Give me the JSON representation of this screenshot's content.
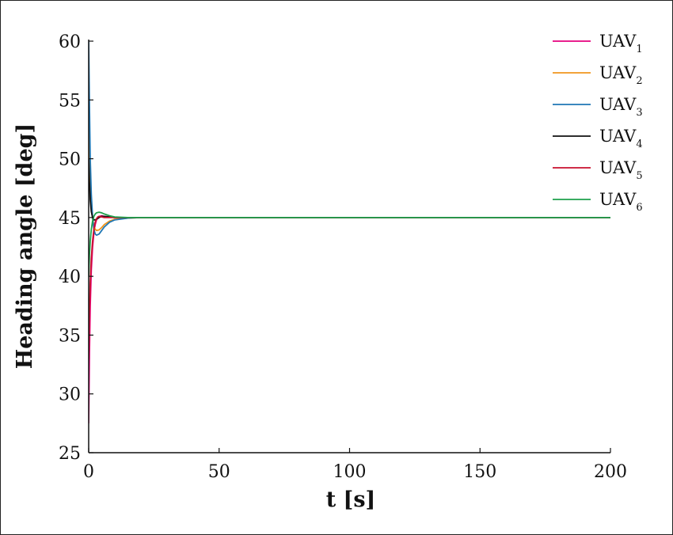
{
  "chart_data": {
    "type": "line",
    "title": "",
    "xlabel": "t [s]",
    "ylabel": "Heading angle [deg]",
    "xlim": [
      0,
      200
    ],
    "ylim": [
      25,
      60
    ],
    "xticks": [
      0,
      50,
      100,
      150,
      200
    ],
    "yticks": [
      25,
      30,
      35,
      40,
      45,
      50,
      55,
      60
    ],
    "grid": false,
    "legend": "top-right",
    "series": [
      {
        "name": "UAV1",
        "label_base": "UAV",
        "label_sub": "1",
        "color": "#e6007e",
        "x": [
          0,
          0.3,
          0.6,
          1,
          1.5,
          2,
          2.5,
          3,
          3.5,
          4,
          5,
          6,
          8,
          10,
          15,
          20,
          30,
          200
        ],
        "y": [
          27.5,
          33.5,
          37.5,
          40.5,
          42.5,
          43.7,
          44.4,
          44.8,
          45.0,
          45.1,
          45.15,
          45.1,
          45.05,
          45.0,
          45.0,
          45.0,
          45.0,
          45.0
        ]
      },
      {
        "name": "UAV2",
        "label_base": "UAV",
        "label_sub": "2",
        "color": "#f0961e",
        "x": [
          0,
          0.3,
          0.6,
          1,
          1.5,
          2,
          2.5,
          3,
          4,
          5,
          6,
          8,
          10,
          15,
          20,
          30,
          200
        ],
        "y": [
          55.0,
          51.0,
          48.0,
          46.0,
          44.9,
          44.3,
          44.0,
          43.9,
          43.95,
          44.15,
          44.4,
          44.7,
          44.85,
          44.95,
          45.0,
          45.0,
          45.0
        ]
      },
      {
        "name": "UAV3",
        "label_base": "UAV",
        "label_sub": "3",
        "color": "#1f77b4",
        "x": [
          0,
          0.3,
          0.6,
          1,
          1.5,
          2,
          2.5,
          3,
          4,
          5,
          6,
          8,
          10,
          15,
          20,
          30,
          200
        ],
        "y": [
          60.0,
          54.5,
          50.0,
          47.0,
          45.0,
          44.0,
          43.6,
          43.5,
          43.6,
          43.9,
          44.2,
          44.6,
          44.8,
          44.95,
          45.0,
          45.0,
          45.0
        ]
      },
      {
        "name": "UAV4",
        "label_base": "UAV",
        "label_sub": "4",
        "color": "#111111",
        "x": [
          0,
          0.3,
          0.6,
          1,
          1.5,
          2,
          2.5,
          3,
          4,
          5,
          6,
          8,
          10,
          15,
          20,
          30,
          200
        ],
        "y": [
          50.0,
          48.0,
          46.5,
          45.5,
          45.0,
          44.8,
          44.8,
          44.85,
          45.0,
          45.1,
          45.1,
          45.05,
          45.0,
          45.0,
          45.0,
          45.0,
          45.0
        ]
      },
      {
        "name": "UAV5",
        "label_base": "UAV",
        "label_sub": "5",
        "color": "#c8102e",
        "x": [
          0,
          0.3,
          0.6,
          1,
          1.5,
          2,
          2.5,
          3,
          3.5,
          4,
          5,
          6,
          8,
          10,
          15,
          20,
          30,
          200
        ],
        "y": [
          33.0,
          37.0,
          39.5,
          41.5,
          43.0,
          44.0,
          44.6,
          44.9,
          45.05,
          45.1,
          45.05,
          45.0,
          45.0,
          45.0,
          45.0,
          45.0,
          45.0,
          45.0
        ]
      },
      {
        "name": "UAV6",
        "label_base": "UAV",
        "label_sub": "6",
        "color": "#1ea04b",
        "x": [
          0,
          0.3,
          0.6,
          1,
          1.5,
          2,
          2.5,
          3,
          4,
          5,
          6,
          8,
          10,
          15,
          20,
          30,
          200
        ],
        "y": [
          40.0,
          41.8,
          43.0,
          44.0,
          44.7,
          45.1,
          45.3,
          45.4,
          45.45,
          45.4,
          45.3,
          45.15,
          45.05,
          45.0,
          45.0,
          45.0,
          45.0
        ]
      }
    ]
  }
}
